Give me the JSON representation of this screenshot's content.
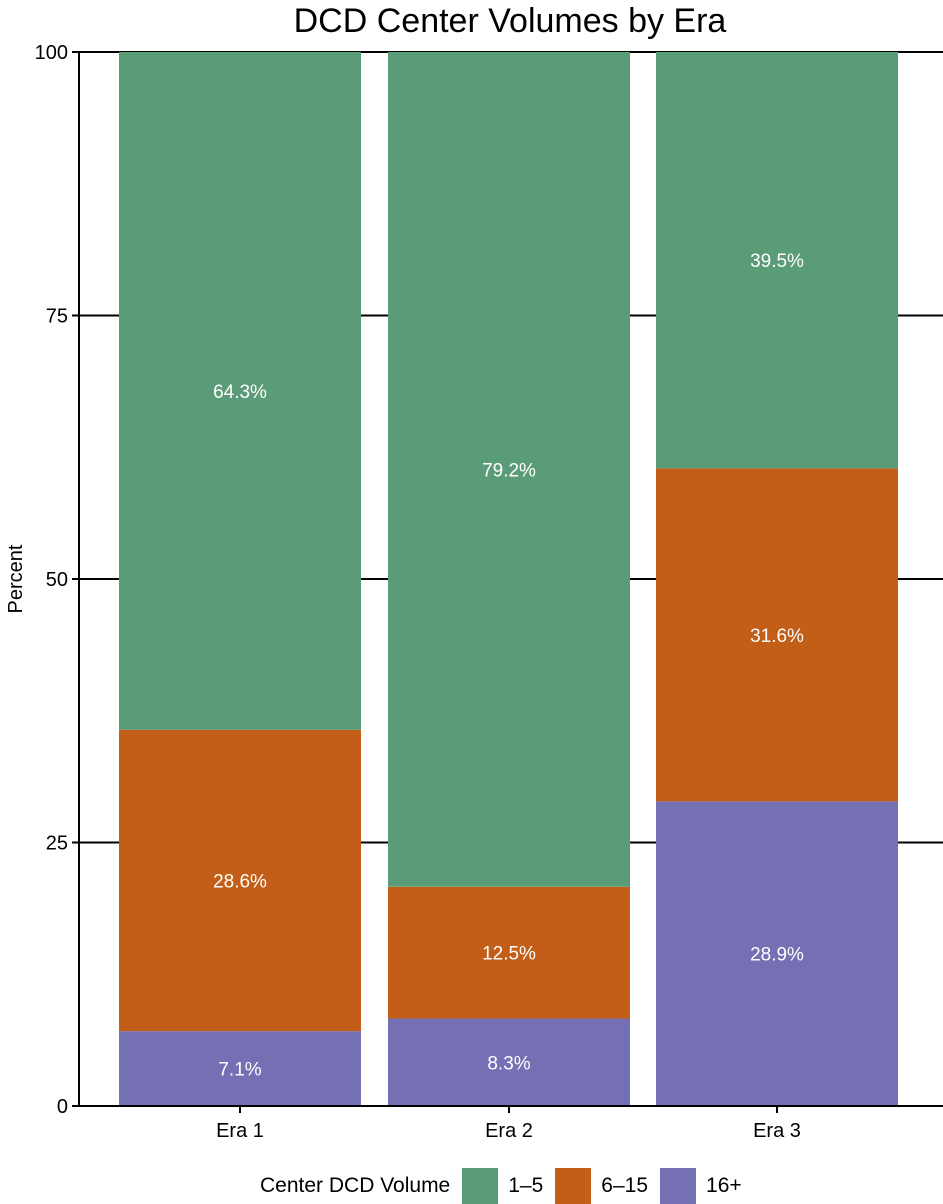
{
  "chart_data": {
    "type": "bar",
    "stacked": true,
    "title": "DCD Center Volumes by Era",
    "xlabel": "",
    "ylabel": "Percent",
    "ylim": [
      0,
      100
    ],
    "yticks": [
      "0",
      "25",
      "50",
      "75",
      "100"
    ],
    "categories": [
      "Era 1",
      "Era 2",
      "Era 3"
    ],
    "series": [
      {
        "name": "16+",
        "color": "#7570b3",
        "values": [
          7.1,
          8.3,
          28.9
        ],
        "labels": [
          "7.1%",
          "8.3%",
          "28.9%"
        ]
      },
      {
        "name": "6–15",
        "color": "#c25e18",
        "values": [
          28.6,
          12.5,
          31.6
        ],
        "labels": [
          "28.6%",
          "12.5%",
          "31.6%"
        ]
      },
      {
        "name": "1–5",
        "color": "#5b9c78",
        "values": [
          64.3,
          79.2,
          39.5
        ],
        "labels": [
          "64.3%",
          "79.2%",
          "39.5%"
        ]
      }
    ],
    "legend": {
      "title": "Center DCD Volume",
      "position": "bottom",
      "items": [
        {
          "label": "1–5",
          "color": "#5b9c78"
        },
        {
          "label": "6–15",
          "color": "#c25e18"
        },
        {
          "label": "16+",
          "color": "#7570b3"
        }
      ]
    },
    "grid": {
      "major_y": true,
      "color": "#000000"
    }
  }
}
